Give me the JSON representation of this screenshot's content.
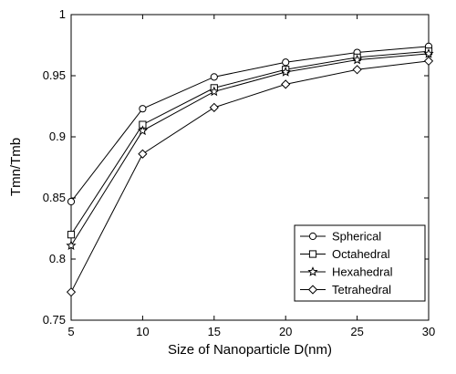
{
  "chart_data": {
    "type": "line",
    "title": "",
    "xlabel": "Size of Nanoparticle D(nm)",
    "ylabel": "Tmn/Tmb",
    "x": [
      5,
      10,
      15,
      20,
      25,
      30
    ],
    "xlim": [
      5,
      30
    ],
    "ylim": [
      0.75,
      1
    ],
    "xticks": [
      5,
      10,
      15,
      20,
      25,
      30
    ],
    "yticks": [
      0.75,
      0.8,
      0.85,
      0.9,
      0.95,
      1
    ],
    "ytick_labels": [
      "0.75",
      "0.8",
      "0.85",
      "0.9",
      "0.95",
      "1"
    ],
    "grid": false,
    "legend": "bottom-right",
    "color": "#000000",
    "series": [
      {
        "name": "Spherical",
        "marker": "circle",
        "values": [
          0.847,
          0.923,
          0.949,
          0.961,
          0.969,
          0.974
        ]
      },
      {
        "name": "Octahedral",
        "marker": "square",
        "values": [
          0.82,
          0.91,
          0.94,
          0.955,
          0.965,
          0.97
        ]
      },
      {
        "name": "Hexahedral",
        "marker": "star",
        "values": [
          0.811,
          0.905,
          0.937,
          0.953,
          0.963,
          0.968
        ]
      },
      {
        "name": "Tetrahedral",
        "marker": "diamond",
        "values": [
          0.773,
          0.886,
          0.924,
          0.943,
          0.955,
          0.962
        ]
      }
    ]
  }
}
